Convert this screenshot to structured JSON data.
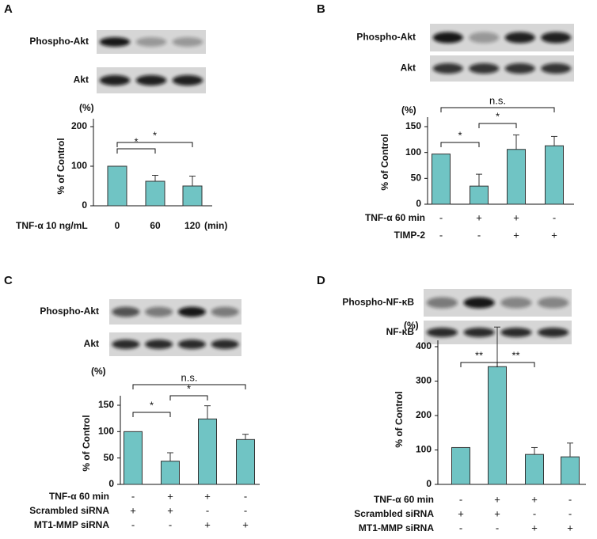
{
  "chart_data": [
    {
      "type": "bar",
      "panel": "A",
      "blots": [
        "Phospho-Akt",
        "Akt"
      ],
      "y_unit": "(%)",
      "y_label": "% of Control",
      "ylim": [
        0,
        200
      ],
      "yticks": [
        0,
        100,
        200
      ],
      "color": "#70c4c4",
      "x_label": "TNF-α 10 ng/mL",
      "x_unit": "(min)",
      "categories": [
        "0",
        "60",
        "120"
      ],
      "values": [
        100,
        62,
        50
      ],
      "errors": [
        0,
        15,
        25
      ],
      "brackets": [
        {
          "from": 0,
          "to": 1,
          "label": "*"
        },
        {
          "from": 0,
          "to": 2,
          "label": "*"
        }
      ]
    },
    {
      "type": "bar",
      "panel": "B",
      "blots": [
        "Phospho-Akt",
        "Akt"
      ],
      "y_unit": "(%)",
      "y_label": "% of Control",
      "ylim": [
        0,
        150
      ],
      "yticks": [
        0,
        50,
        100,
        150
      ],
      "color": "#70c4c4",
      "categories": [
        null,
        null,
        null,
        null
      ],
      "values": [
        97,
        35,
        106,
        113
      ],
      "errors": [
        0,
        23,
        28,
        18
      ],
      "conditions": [
        {
          "label": "TNF-α  60 min",
          "values": [
            "-",
            "+",
            "+",
            "-"
          ]
        },
        {
          "label": "TIMP-2",
          "values": [
            "-",
            "-",
            "+",
            "+"
          ]
        }
      ],
      "brackets": [
        {
          "from": 0,
          "to": 1,
          "label": "*"
        },
        {
          "from": 1,
          "to": 2,
          "label": "*"
        },
        {
          "from": 0,
          "to": 3,
          "label": "n.s."
        }
      ]
    },
    {
      "type": "bar",
      "panel": "C",
      "blots": [
        "Phospho-Akt",
        "Akt"
      ],
      "y_unit": "(%)",
      "y_label": "% of Control",
      "ylim": [
        0,
        150
      ],
      "yticks": [
        0,
        50,
        100,
        150
      ],
      "color": "#70c4c4",
      "categories": [
        null,
        null,
        null,
        null
      ],
      "values": [
        100,
        44,
        124,
        85
      ],
      "errors": [
        0,
        16,
        25,
        10
      ],
      "conditions": [
        {
          "label": "TNF-α  60 min",
          "values": [
            "-",
            "+",
            "+",
            "-"
          ]
        },
        {
          "label": "Scrambled siRNA",
          "values": [
            "+",
            "+",
            "-",
            "-"
          ]
        },
        {
          "label": "MT1-MMP siRNA",
          "values": [
            "-",
            "-",
            "+",
            "+"
          ]
        }
      ],
      "brackets": [
        {
          "from": 0,
          "to": 1,
          "label": "*"
        },
        {
          "from": 1,
          "to": 2,
          "label": "*"
        },
        {
          "from": 0,
          "to": 3,
          "label": "n.s."
        }
      ]
    },
    {
      "type": "bar",
      "panel": "D",
      "blots": [
        "Phospho-NF-κB",
        "NF-κB"
      ],
      "y_unit": "(%)",
      "y_label": "% of Control",
      "ylim": [
        0,
        400
      ],
      "yticks": [
        0,
        100,
        200,
        300,
        400
      ],
      "color": "#70c4c4",
      "categories": [
        null,
        null,
        null,
        null
      ],
      "values": [
        107,
        342,
        87,
        80
      ],
      "errors": [
        0,
        115,
        20,
        40
      ],
      "conditions": [
        {
          "label": "TNF-α  60 min",
          "values": [
            "-",
            "+",
            "+",
            "-"
          ]
        },
        {
          "label": "Scrambled siRNA",
          "values": [
            "+",
            "+",
            "-",
            "-"
          ]
        },
        {
          "label": "MT1-MMP siRNA",
          "values": [
            "-",
            "-",
            "+",
            "+"
          ]
        }
      ],
      "brackets": [
        {
          "from": 0,
          "to": 1,
          "label": "**"
        },
        {
          "from": 1,
          "to": 2,
          "label": "**"
        }
      ]
    }
  ]
}
